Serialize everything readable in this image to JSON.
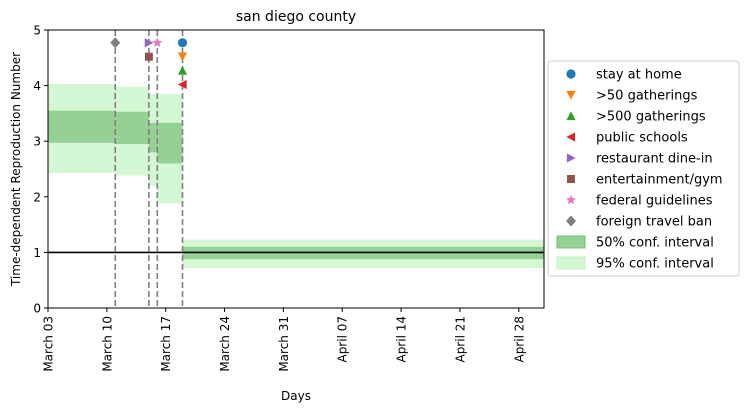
{
  "chart_data": {
    "type": "line",
    "title": "san diego county",
    "xlabel": "Days",
    "ylabel": "Time-dependent Reproduction Number",
    "xlim": [
      "2020-03-03",
      "2020-05-01"
    ],
    "ylim": [
      0,
      5
    ],
    "xticks": [
      {
        "date": "2020-03-03",
        "label": "March 03"
      },
      {
        "date": "2020-03-10",
        "label": "March 10"
      },
      {
        "date": "2020-03-17",
        "label": "March 17"
      },
      {
        "date": "2020-03-24",
        "label": "March 24"
      },
      {
        "date": "2020-03-31",
        "label": "March 31"
      },
      {
        "date": "2020-04-07",
        "label": "April 07"
      },
      {
        "date": "2020-04-14",
        "label": "April 14"
      },
      {
        "date": "2020-04-21",
        "label": "April 21"
      },
      {
        "date": "2020-04-28",
        "label": "April 28"
      }
    ],
    "yticks": [
      0,
      1,
      2,
      3,
      4,
      5
    ],
    "reference_line": {
      "y": 1,
      "color": "#000000"
    },
    "segments": [
      {
        "start": "2020-03-03",
        "end": "2020-03-11",
        "ci50": [
          2.97,
          3.55
        ],
        "ci95": [
          2.43,
          4.03
        ]
      },
      {
        "start": "2020-03-11",
        "end": "2020-03-15",
        "ci50": [
          2.95,
          3.53
        ],
        "ci95": [
          2.38,
          3.98
        ]
      },
      {
        "start": "2020-03-15",
        "end": "2020-03-16",
        "ci50": [
          2.8,
          3.33
        ],
        "ci95": [
          2.2,
          3.85
        ]
      },
      {
        "start": "2020-03-16",
        "end": "2020-03-19",
        "ci50": [
          2.6,
          3.33
        ],
        "ci95": [
          1.88,
          3.85
        ]
      },
      {
        "start": "2020-03-19",
        "end": "2020-05-01",
        "ci50": [
          0.88,
          1.1
        ],
        "ci95": [
          0.72,
          1.23
        ]
      }
    ],
    "interventions": [
      {
        "name": "stay at home",
        "date": "2020-03-19",
        "marker_y": 4.77,
        "marker": "circle",
        "color": "#1f77b4"
      },
      {
        "name": ">50 gatherings",
        "date": "2020-03-19",
        "marker_y": 4.52,
        "marker": "triangle-down",
        "color": "#ff7f0e"
      },
      {
        "name": ">500 gatherings",
        "date": "2020-03-19",
        "marker_y": 4.27,
        "marker": "triangle-up",
        "color": "#2ca02c"
      },
      {
        "name": "public schools",
        "date": "2020-03-19",
        "marker_y": 4.02,
        "marker": "triangle-left",
        "color": "#d62728"
      },
      {
        "name": "restaurant dine-in",
        "date": "2020-03-15",
        "marker_y": 4.77,
        "marker": "triangle-right",
        "color": "#9467bd"
      },
      {
        "name": "entertainment/gym",
        "date": "2020-03-15",
        "marker_y": 4.52,
        "marker": "square",
        "color": "#8c564b"
      },
      {
        "name": "federal guidelines",
        "date": "2020-03-16",
        "marker_y": 4.77,
        "marker": "star",
        "color": "#e377c2"
      },
      {
        "name": "foreign travel ban",
        "date": "2020-03-11",
        "marker_y": 4.77,
        "marker": "diamond",
        "color": "#7f7f7f"
      }
    ],
    "vlines": [
      "2020-03-11",
      "2020-03-15",
      "2020-03-16",
      "2020-03-19"
    ],
    "ci_legend": [
      {
        "name": "50% conf. interval",
        "fill": "#95d195",
        "stroke": "#6cbf6c"
      },
      {
        "name": "95% conf. interval",
        "fill": "#d3f8d3",
        "stroke": "#c2f0c2"
      }
    ],
    "legend_placement": "right",
    "grid": false
  }
}
